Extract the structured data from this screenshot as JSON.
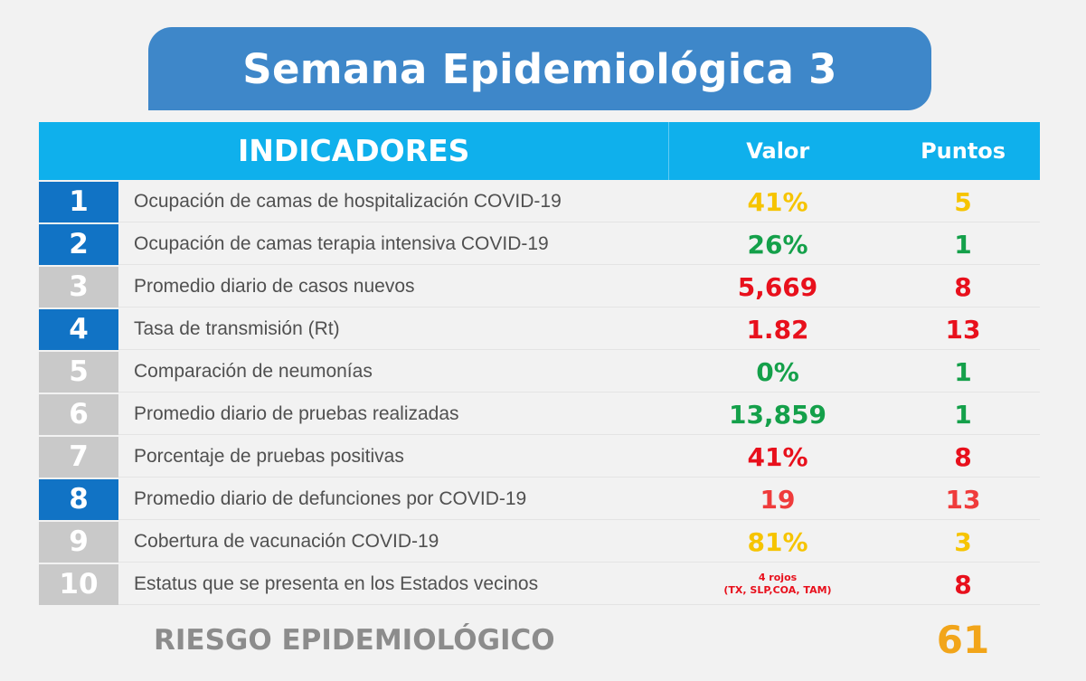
{
  "title": "Semana Epidemiológica 3",
  "header": {
    "indicadores": "INDICADORES",
    "valor": "Valor",
    "puntos": "Puntos"
  },
  "colors": {
    "yellow": "#f6c400",
    "green": "#14a04a",
    "red": "#e8101c",
    "orange": "#f2a51a",
    "blue": "#1173c5",
    "gray": "#c9c9c9"
  },
  "rows": [
    {
      "num": "1",
      "num_style": "blue",
      "label": "Ocupación de camas de hospitalización COVID-19",
      "value": "41%",
      "value_color": "#f6c400",
      "points": "5",
      "points_color": "#f6c400"
    },
    {
      "num": "2",
      "num_style": "blue",
      "label": "Ocupación de camas terapia intensiva COVID-19",
      "value": "26%",
      "value_color": "#14a04a",
      "points": "1",
      "points_color": "#14a04a"
    },
    {
      "num": "3",
      "num_style": "gray",
      "label": "Promedio diario de casos nuevos",
      "value": "5,669",
      "value_color": "#e8101c",
      "points": "8",
      "points_color": "#e8101c"
    },
    {
      "num": "4",
      "num_style": "blue",
      "label": "Tasa de transmisión (Rt)",
      "value": "1.82",
      "value_color": "#e8101c",
      "points": "13",
      "points_color": "#e8101c"
    },
    {
      "num": "5",
      "num_style": "gray",
      "label": "Comparación de neumonías",
      "value": "0%",
      "value_color": "#14a04a",
      "points": "1",
      "points_color": "#14a04a"
    },
    {
      "num": "6",
      "num_style": "gray",
      "label": "Promedio diario de pruebas realizadas",
      "value": "13,859",
      "value_color": "#14a04a",
      "points": "1",
      "points_color": "#14a04a"
    },
    {
      "num": "7",
      "num_style": "gray",
      "label": "Porcentaje de pruebas positivas",
      "value": "41%",
      "value_color": "#e8101c",
      "points": "8",
      "points_color": "#e8101c"
    },
    {
      "num": "8",
      "num_style": "blue",
      "label": "Promedio diario de defunciones por COVID-19",
      "value": "19",
      "value_color": "#ef3b3b",
      "points": "13",
      "points_color": "#ef3b3b"
    },
    {
      "num": "9",
      "num_style": "gray",
      "label": "Cobertura de vacunación COVID-19",
      "value": "81%",
      "value_color": "#f6c400",
      "points": "3",
      "points_color": "#f6c400"
    },
    {
      "num": "10",
      "num_style": "gray",
      "label": "Estatus que se presenta en los Estados vecinos",
      "value_line1": "4 rojos",
      "value_line2": "(TX, SLP,COA, TAM)",
      "value_color": "#e8101c",
      "points": "8",
      "points_color": "#e8101c"
    }
  ],
  "footer": {
    "label": "RIESGO EPIDEMIOLÓGICO",
    "total": "61",
    "total_color": "#f2a51a"
  }
}
